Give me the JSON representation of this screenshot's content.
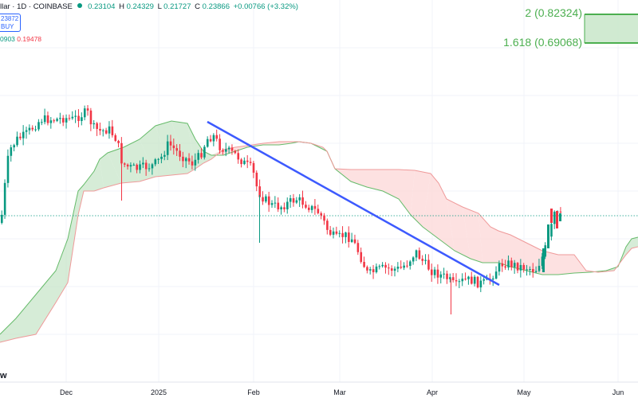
{
  "legend": {
    "symbol": "llar · 1D · COINBASE",
    "open_label": "O",
    "open": "0.23104",
    "high_label": "H",
    "high": "0.24329",
    "low_label": "L",
    "low": "0.21727",
    "close_label": "C",
    "close": "0.23866",
    "change": "+0.00766 (+3.32%)",
    "buy_price": "23872",
    "buy_label": "BUY",
    "ichimoku_a": "0903",
    "ichimoku_b": "0.19478"
  },
  "fib_levels": [
    {
      "label": "2 (0.82324)"
    },
    {
      "label": "1.618 (0.69068)"
    }
  ],
  "watermark": "w",
  "x_axis": [
    "Dec",
    "2025",
    "Feb",
    "Mar",
    "Apr",
    "May",
    "Jun"
  ],
  "colors": {
    "up": "#089981",
    "down": "#f23645",
    "trendline": "#3d5afe",
    "cloud_bull": "#c8e6c9",
    "cloud_bear": "#fcdada",
    "fib": "#4caf50"
  },
  "chart_data": {
    "type": "candlestick",
    "title": "",
    "xlabel": "",
    "ylabel": "",
    "price_range": [
      0.12,
      0.86
    ],
    "last_close": 0.23866,
    "fib_levels": [
      0.82324,
      0.69068
    ],
    "trendline": {
      "from": {
        "date": "2025-01-18",
        "price": 0.285
      },
      "to": {
        "date": "2025-04-22",
        "price": 0.14
      }
    },
    "x_ticks": [
      "Dec",
      "2025",
      "Feb",
      "Mar",
      "Apr",
      "May",
      "Jun"
    ]
  }
}
